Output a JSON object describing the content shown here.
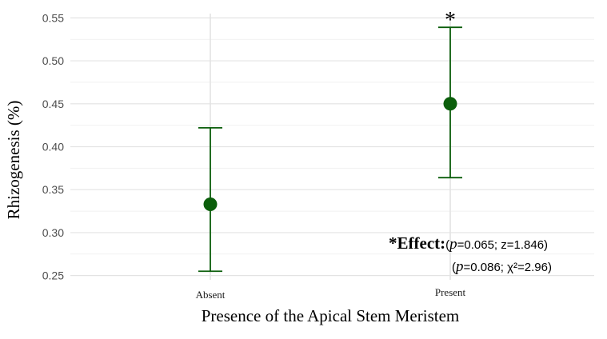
{
  "chart_data": {
    "type": "scatter",
    "title": "",
    "xlabel": "Presence of the Apical Stem Meristem",
    "ylabel": "Rhizogenesis (%)",
    "categories": [
      "Absent",
      "Present"
    ],
    "values": [
      0.333,
      0.45
    ],
    "error_low": [
      0.255,
      0.364
    ],
    "error_high": [
      0.422,
      0.539
    ],
    "ylim": [
      0.245,
      0.555
    ],
    "yticks": [
      "0.25",
      "0.30",
      "0.35",
      "0.40",
      "0.45",
      "0.50",
      "0.55"
    ],
    "grid": true,
    "color": "#0b5e0b",
    "significance_marker": "*",
    "annotation": {
      "label": "*Effect:",
      "line1_p": "p",
      "line1_rest": "=0.065; z=1.846)",
      "line2_p": "p",
      "line2_rest": "=0.086; χ²=2.96)"
    }
  }
}
